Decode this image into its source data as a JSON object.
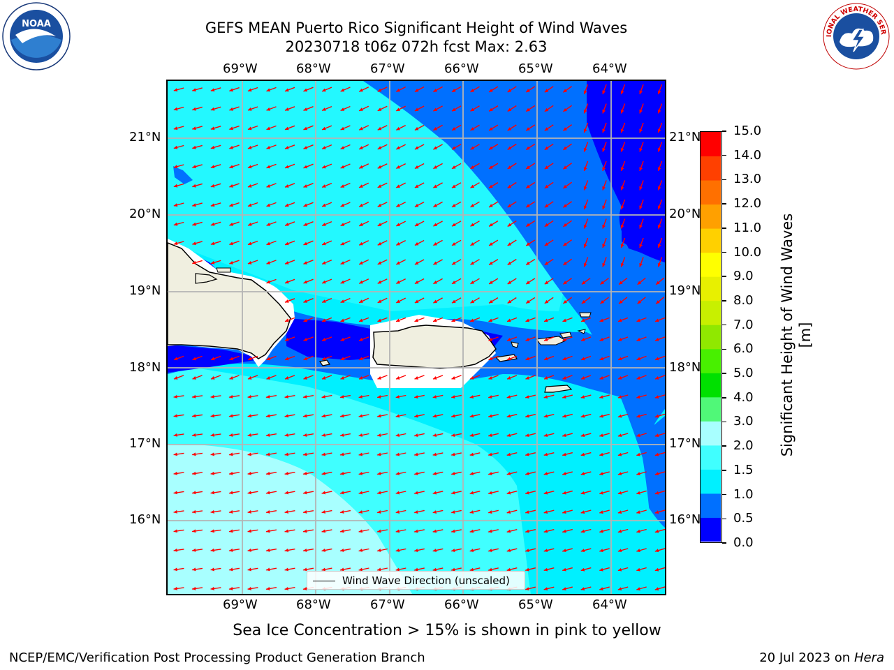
{
  "title_line1": "GEFS MEAN Puerto Rico Significant Height of Wind Waves",
  "title_line2": "20230718 t06z 072h fcst   Max: 2.63",
  "lon_labels": [
    "69°W",
    "68°W",
    "67°W",
    "66°W",
    "65°W",
    "64°W"
  ],
  "lat_labels": [
    "21°N",
    "20°N",
    "19°N",
    "18°N",
    "17°N",
    "16°N"
  ],
  "colorbar": {
    "label": "Significant Height of Wind Waves [m]",
    "ticks": [
      "0.0",
      "0.5",
      "1.0",
      "1.5",
      "2.0",
      "3.0",
      "4.0",
      "5.0",
      "6.0",
      "7.0",
      "8.0",
      "9.0",
      "10.0",
      "11.0",
      "12.0",
      "13.0",
      "14.0",
      "15.0"
    ],
    "colors": [
      "#0000ff",
      "#0070ff",
      "#00f0ff",
      "#40ffff",
      "#a8ffff",
      "#50f878",
      "#00e000",
      "#48f000",
      "#90e800",
      "#c8f000",
      "#e8f000",
      "#ffff00",
      "#ffd000",
      "#ffa000",
      "#ff7000",
      "#ff4000",
      "#ff0000"
    ]
  },
  "legend_label": "Wind Wave Direction (unscaled)",
  "subtitle": "Sea Ice Concentration > 15% is shown in pink to yellow",
  "footer_left": "NCEP/EMC/Verification Post Processing Product Generation Branch",
  "footer_date": "20 Jul 2023 on ",
  "footer_machine": "Hera",
  "logos": {
    "left": "NOAA",
    "right": "NATIONAL WEATHER SERVICE"
  },
  "land_color": "#f0efe0",
  "arrow_color": "#ff0000"
}
